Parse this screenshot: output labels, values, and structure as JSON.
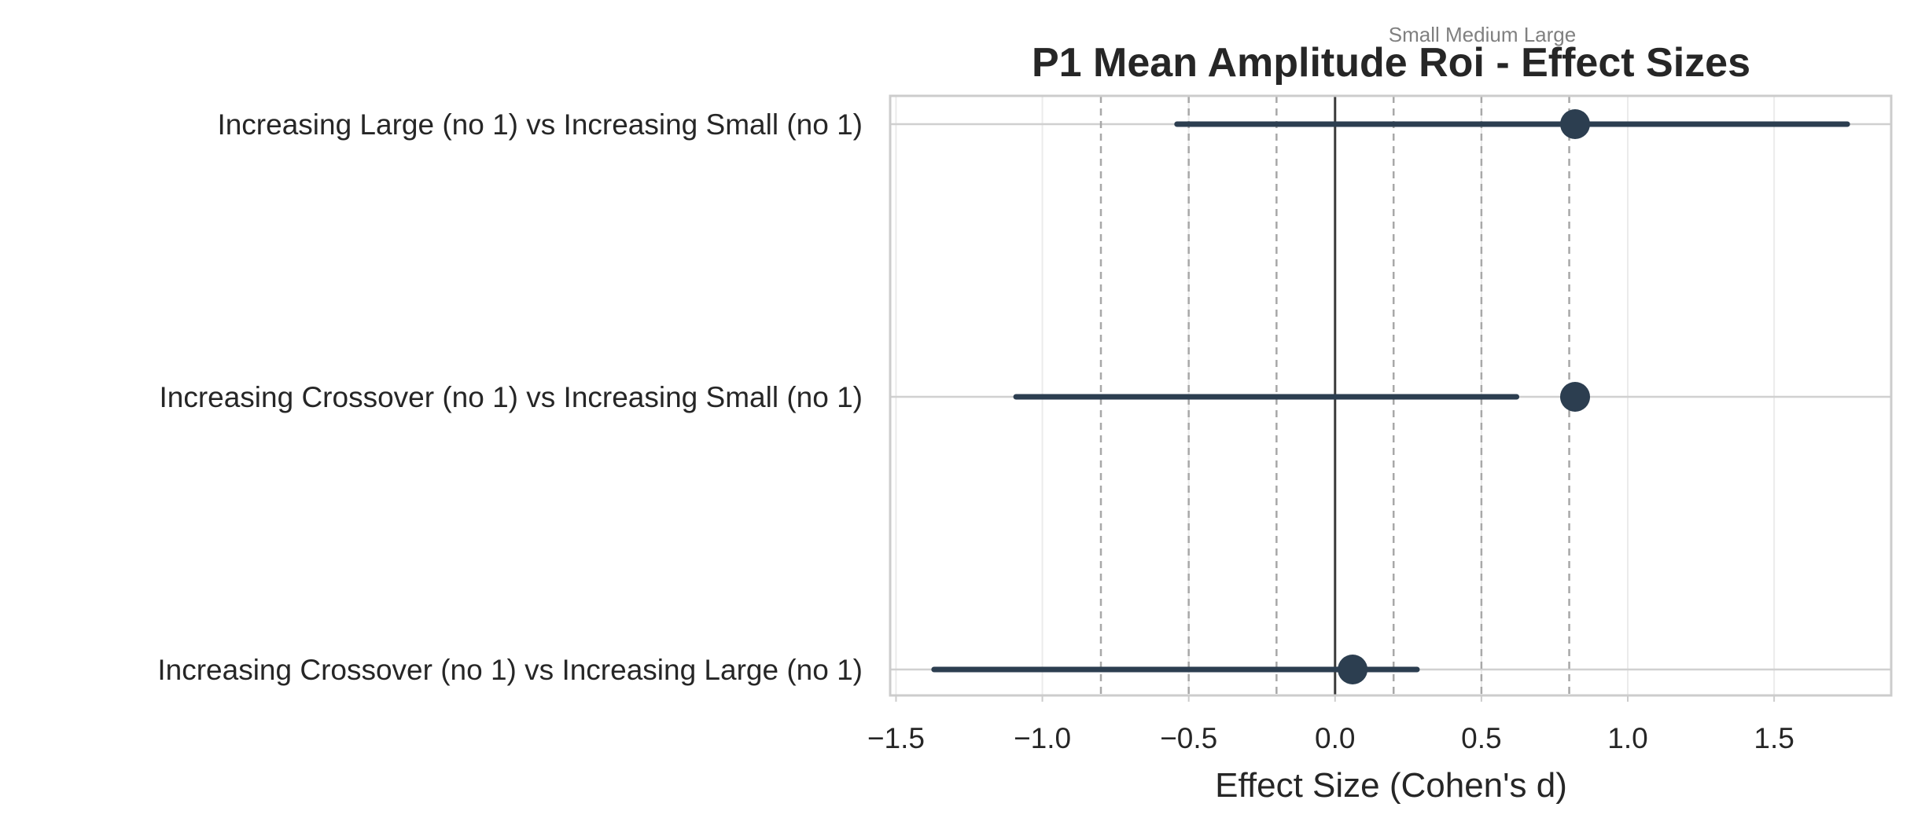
{
  "chart_data": {
    "type": "forest",
    "title": "P1 Mean Amplitude Roi - Effect Sizes",
    "annotation": "Small Medium Large",
    "xlabel": "Effect Size (Cohen's d)",
    "ylabel": "",
    "xlim": [
      -1.52,
      1.9
    ],
    "xticks": [
      -1.5,
      -1.0,
      -0.5,
      0.0,
      0.5,
      1.0,
      1.5
    ],
    "xtick_labels": [
      "−1.5",
      "−1.0",
      "−0.5",
      "0.0",
      "0.5",
      "1.0",
      "1.5"
    ],
    "reference_lines": [
      -0.8,
      -0.5,
      -0.2,
      0.2,
      0.5,
      0.8
    ],
    "zero_line": 0.0,
    "grid": true,
    "point_color": "#2c3e50",
    "rows": [
      {
        "label": "Increasing Large (no 1) vs Increasing Small (no 1)",
        "d": 0.82,
        "ci_low": -0.54,
        "ci_high": 1.75
      },
      {
        "label": "Increasing Crossover (no 1) vs Increasing Small (no 1)",
        "d": 0.82,
        "ci_low": -1.09,
        "ci_high": 0.62
      },
      {
        "label": "Increasing Crossover (no 1) vs Increasing Large (no 1)",
        "d": 0.06,
        "ci_low": -1.37,
        "ci_high": 0.28
      }
    ]
  }
}
